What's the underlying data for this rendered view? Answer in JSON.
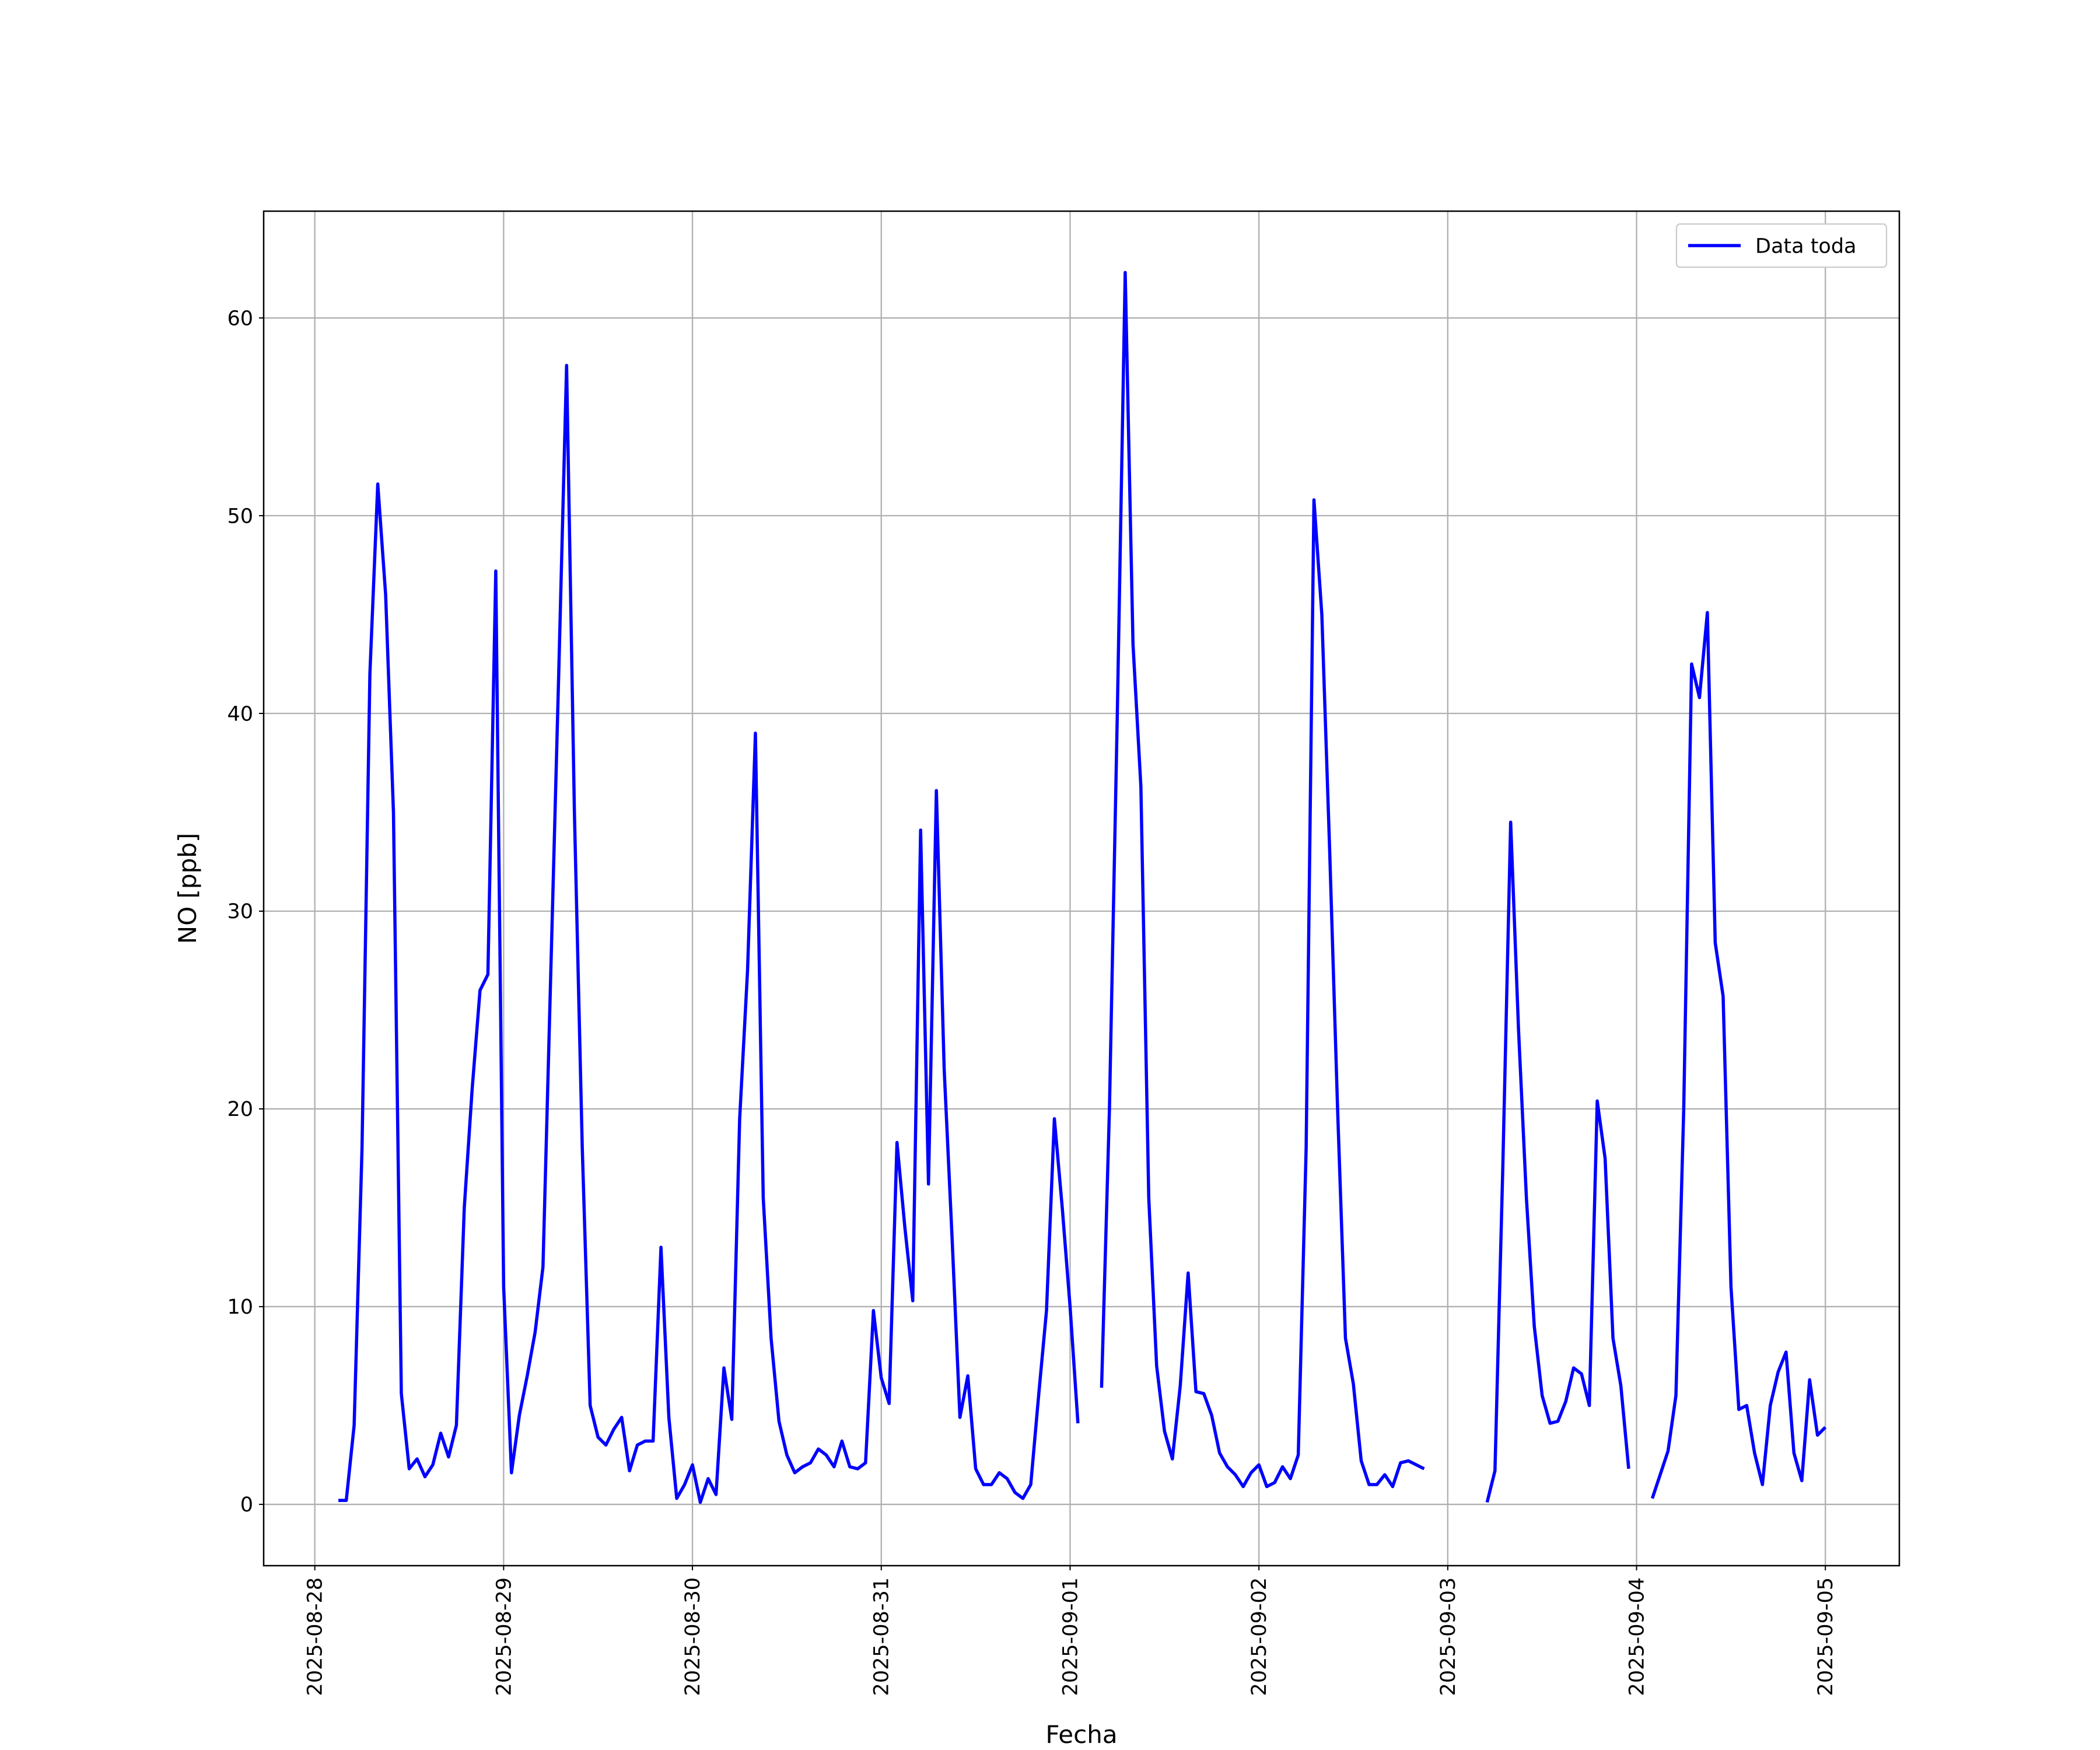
{
  "chart_data": {
    "type": "line",
    "xlabel": "Fecha",
    "ylabel": "NO [ppb]",
    "x": [
      "2025-08-28 03:00",
      "2025-08-28 04:00",
      "2025-08-28 05:00",
      "2025-08-28 06:00",
      "2025-08-28 07:00",
      "2025-08-28 08:00",
      "2025-08-28 09:00",
      "2025-08-28 10:00",
      "2025-08-28 11:00",
      "2025-08-28 12:00",
      "2025-08-28 13:00",
      "2025-08-28 14:00",
      "2025-08-28 15:00",
      "2025-08-28 16:00",
      "2025-08-28 17:00",
      "2025-08-28 18:00",
      "2025-08-28 19:00",
      "2025-08-28 20:00",
      "2025-08-28 21:00",
      "2025-08-28 22:00",
      "2025-08-28 23:00",
      "2025-08-29 00:00",
      "2025-08-29 01:00",
      "2025-08-29 02:00",
      "2025-08-29 03:00",
      "2025-08-29 04:00",
      "2025-08-29 05:00",
      "2025-08-29 06:00",
      "2025-08-29 07:00",
      "2025-08-29 08:00",
      "2025-08-29 09:00",
      "2025-08-29 10:00",
      "2025-08-29 11:00",
      "2025-08-29 12:00",
      "2025-08-29 13:00",
      "2025-08-29 14:00",
      "2025-08-29 15:00",
      "2025-08-29 16:00",
      "2025-08-29 17:00",
      "2025-08-29 18:00",
      "2025-08-29 19:00",
      "2025-08-29 20:00",
      "2025-08-29 21:00",
      "2025-08-29 22:00",
      "2025-08-29 23:00",
      "2025-08-30 00:00",
      "2025-08-30 01:00",
      "2025-08-30 02:00",
      "2025-08-30 03:00",
      "2025-08-30 04:00",
      "2025-08-30 05:00",
      "2025-08-30 06:00",
      "2025-08-30 07:00",
      "2025-08-30 08:00",
      "2025-08-30 09:00",
      "2025-08-30 10:00",
      "2025-08-30 11:00",
      "2025-08-30 12:00",
      "2025-08-30 13:00",
      "2025-08-30 14:00",
      "2025-08-30 15:00",
      "2025-08-30 16:00",
      "2025-08-30 17:00",
      "2025-08-30 18:00",
      "2025-08-30 19:00",
      "2025-08-30 20:00",
      "2025-08-30 21:00",
      "2025-08-30 22:00",
      "2025-08-30 23:00",
      "2025-08-31 00:00",
      "2025-08-31 01:00",
      "2025-08-31 02:00",
      "2025-08-31 03:00",
      "2025-08-31 04:00",
      "2025-08-31 05:00",
      "2025-08-31 06:00",
      "2025-08-31 07:00",
      "2025-08-31 08:00",
      "2025-08-31 09:00",
      "2025-08-31 10:00",
      "2025-08-31 11:00",
      "2025-08-31 12:00",
      "2025-08-31 13:00",
      "2025-08-31 14:00",
      "2025-08-31 15:00",
      "2025-08-31 16:00",
      "2025-08-31 17:00",
      "2025-08-31 18:00",
      "2025-08-31 19:00",
      "2025-08-31 20:00",
      "2025-08-31 21:00",
      "2025-08-31 22:00",
      "2025-08-31 23:00",
      "2025-09-01 00:00",
      "2025-09-01 01:00",
      "2025-09-01 02:00",
      "2025-09-01 03:00",
      "2025-09-01 04:00",
      "2025-09-01 05:00",
      "2025-09-01 06:00",
      "2025-09-01 07:00",
      "2025-09-01 08:00",
      "2025-09-01 09:00",
      "2025-09-01 10:00",
      "2025-09-01 11:00",
      "2025-09-01 12:00",
      "2025-09-01 13:00",
      "2025-09-01 14:00",
      "2025-09-01 15:00",
      "2025-09-01 16:00",
      "2025-09-01 17:00",
      "2025-09-01 18:00",
      "2025-09-01 19:00",
      "2025-09-01 20:00",
      "2025-09-01 21:00",
      "2025-09-01 22:00",
      "2025-09-01 23:00",
      "2025-09-02 00:00",
      "2025-09-02 01:00",
      "2025-09-02 02:00",
      "2025-09-02 03:00",
      "2025-09-02 04:00",
      "2025-09-02 05:00",
      "2025-09-02 06:00",
      "2025-09-02 07:00",
      "2025-09-02 08:00",
      "2025-09-02 09:00",
      "2025-09-02 10:00",
      "2025-09-02 11:00",
      "2025-09-02 12:00",
      "2025-09-02 13:00",
      "2025-09-02 14:00",
      "2025-09-02 15:00",
      "2025-09-02 16:00",
      "2025-09-02 17:00",
      "2025-09-02 18:00",
      "2025-09-02 19:00",
      "2025-09-02 20:00",
      "2025-09-02 21:00",
      "2025-09-02 22:00",
      "2025-09-02 23:00",
      "2025-09-03 00:00",
      "2025-09-03 01:00",
      "2025-09-03 02:00",
      "2025-09-03 03:00",
      "2025-09-03 04:00",
      "2025-09-03 05:00",
      "2025-09-03 06:00",
      "2025-09-03 07:00",
      "2025-09-03 08:00",
      "2025-09-03 09:00",
      "2025-09-03 10:00",
      "2025-09-03 11:00",
      "2025-09-03 12:00",
      "2025-09-03 13:00",
      "2025-09-03 14:00",
      "2025-09-03 15:00",
      "2025-09-03 16:00",
      "2025-09-03 17:00",
      "2025-09-03 18:00",
      "2025-09-03 19:00",
      "2025-09-03 20:00",
      "2025-09-03 21:00",
      "2025-09-03 22:00",
      "2025-09-03 23:00",
      "2025-09-04 00:00",
      "2025-09-04 01:00",
      "2025-09-04 02:00",
      "2025-09-04 03:00",
      "2025-09-04 04:00",
      "2025-09-04 05:00",
      "2025-09-04 06:00",
      "2025-09-04 07:00",
      "2025-09-04 08:00",
      "2025-09-04 09:00",
      "2025-09-04 10:00",
      "2025-09-04 11:00",
      "2025-09-04 12:00",
      "2025-09-04 13:00",
      "2025-09-04 14:00",
      "2025-09-04 15:00",
      "2025-09-04 16:00",
      "2025-09-04 17:00",
      "2025-09-04 18:00",
      "2025-09-04 19:00",
      "2025-09-04 20:00",
      "2025-09-04 21:00",
      "2025-09-04 22:00",
      "2025-09-04 23:00",
      "2025-09-05 00:00"
    ],
    "series": [
      {
        "name": "Data toda",
        "color": "#0000ff",
        "values": [
          0.2,
          0.2,
          4,
          18,
          42,
          51.6,
          46,
          35,
          5.6,
          1.8,
          2.3,
          1.4,
          2,
          3.6,
          2.4,
          4,
          15,
          21,
          26,
          26.8,
          47.2,
          11,
          1.6,
          4.5,
          6.5,
          8.7,
          12,
          27,
          42,
          57.6,
          35,
          18,
          5,
          3.4,
          3,
          3.8,
          4.4,
          1.7,
          3,
          3.2,
          3.2,
          13,
          4.4,
          0.3,
          1,
          2,
          0.1,
          1.3,
          0.5,
          6.9,
          4.3,
          19.5,
          27,
          39,
          15.5,
          8.4,
          4.2,
          2.5,
          1.6,
          1.9,
          2.1,
          2.8,
          2.5,
          1.9,
          3.2,
          1.9,
          1.8,
          2.1,
          9.8,
          6.4,
          5.1,
          18.3,
          14,
          10.3,
          34.1,
          16.2,
          36.1,
          22,
          13.5,
          4.4,
          6.5,
          1.8,
          1,
          1,
          1.6,
          1.3,
          0.6,
          0.3,
          1,
          5.5,
          9.8,
          19.5,
          15,
          10,
          4.1,
          null,
          null,
          5.9,
          20,
          40,
          62.3,
          43.5,
          36.3,
          15.5,
          7,
          3.7,
          2.3,
          6,
          11.7,
          5.7,
          5.6,
          4.5,
          2.6,
          1.9,
          1.5,
          0.9,
          1.6,
          2,
          0.9,
          1.1,
          1.9,
          1.3,
          2.5,
          18,
          50.8,
          45,
          33,
          20,
          8.4,
          6.1,
          2.2,
          1,
          1,
          1.5,
          0.9,
          2.1,
          2.2,
          2,
          1.8,
          null,
          null,
          null,
          null,
          null,
          null,
          null,
          0.1,
          1.7,
          17,
          34.5,
          24,
          15.5,
          9,
          5.5,
          4.1,
          4.2,
          5.2,
          6.9,
          6.6,
          5,
          20.4,
          17.5,
          8.4,
          6,
          1.8,
          null,
          null,
          0.3,
          1.5,
          2.7,
          5.5,
          20,
          42.5,
          40.8,
          45.1,
          28.4,
          25.7,
          11,
          4.8,
          5,
          2.6,
          1,
          5,
          6.7,
          7.7,
          2.6,
          1.2,
          6.3,
          3.5,
          3.9
        ]
      }
    ],
    "xlim": [
      "2025-08-27 17:30",
      "2025-09-05 09:24"
    ],
    "xticks": [
      "2025-08-28",
      "2025-08-29",
      "2025-08-30",
      "2025-08-31",
      "2025-09-01",
      "2025-09-02",
      "2025-09-03",
      "2025-09-04",
      "2025-09-05"
    ],
    "ylim": [
      -3.1,
      65.4
    ],
    "yticks": [
      0,
      10,
      20,
      30,
      40,
      50,
      60
    ],
    "grid": true,
    "legend": "upper right"
  }
}
